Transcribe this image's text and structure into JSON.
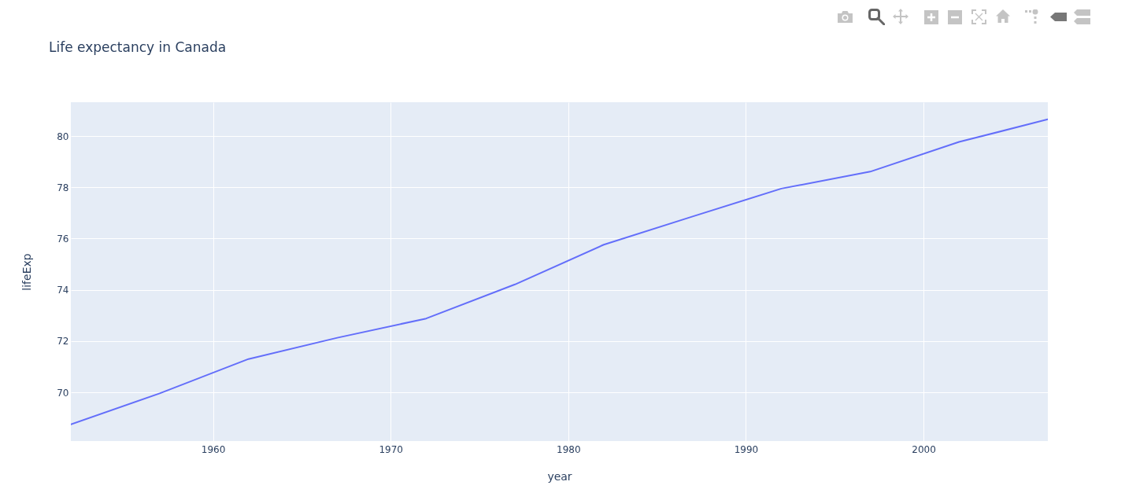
{
  "chart_data": {
    "type": "line",
    "title": "Life expectancy in Canada",
    "xlabel": "year",
    "ylabel": "lifeExp",
    "x": [
      1952,
      1957,
      1962,
      1967,
      1972,
      1977,
      1982,
      1987,
      1992,
      1997,
      2002,
      2007
    ],
    "series": [
      {
        "color": "#636efa",
        "values": [
          68.75,
          69.96,
          71.3,
          72.13,
          72.88,
          74.21,
          75.76,
          76.86,
          77.95,
          78.61,
          79.77,
          80.65
        ]
      }
    ],
    "xlim": [
      1952,
      2007
    ],
    "ylim": [
      68.1,
      81.32
    ],
    "xticks": [
      1960,
      1970,
      1980,
      1990,
      2000
    ],
    "yticks": [
      70,
      72,
      74,
      76,
      78,
      80
    ],
    "grid": true
  }
}
